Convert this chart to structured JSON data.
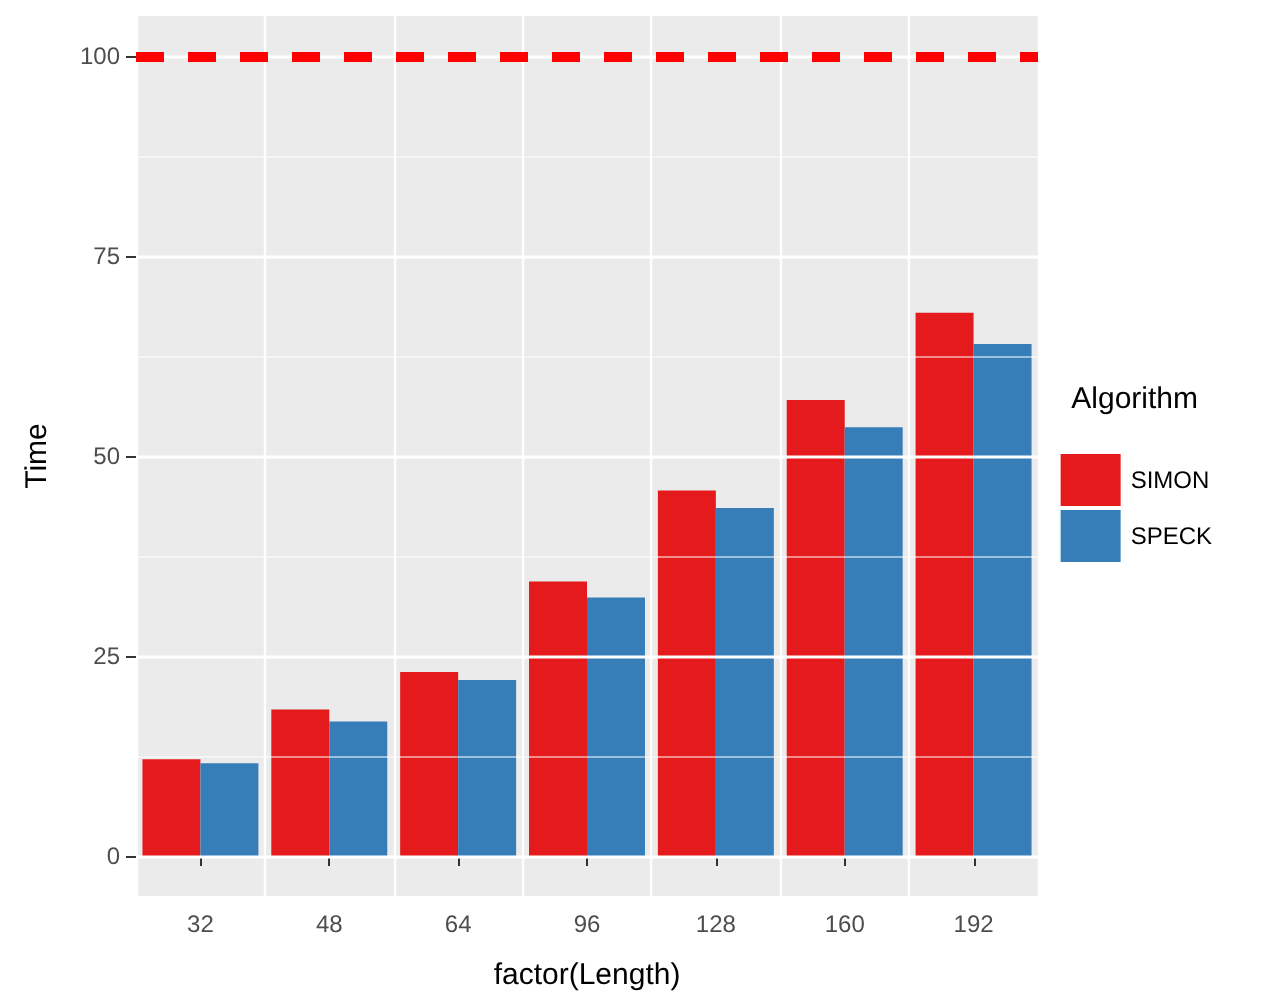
{
  "chart_data": {
    "type": "bar",
    "xlabel": "factor(Length)",
    "ylabel": "Time",
    "legend_title": "Algorithm",
    "categories": [
      "32",
      "48",
      "64",
      "96",
      "128",
      "160",
      "192"
    ],
    "series": [
      {
        "name": "SIMON",
        "color": "#e41a1c",
        "values": [
          12.1,
          18.3,
          23.0,
          34.3,
          45.7,
          57.0,
          67.9
        ]
      },
      {
        "name": "SPECK",
        "color": "#377eb8",
        "values": [
          11.6,
          16.8,
          22.0,
          32.3,
          43.5,
          53.6,
          64.0
        ]
      }
    ],
    "ylim": [
      -5,
      105
    ],
    "yticks": [
      0,
      25,
      50,
      75,
      100
    ],
    "ref_lines": [
      {
        "axis": "y",
        "value": 100,
        "color": "#ff0000",
        "line_style": "dashed"
      }
    ],
    "grid": true,
    "legend": "right"
  }
}
